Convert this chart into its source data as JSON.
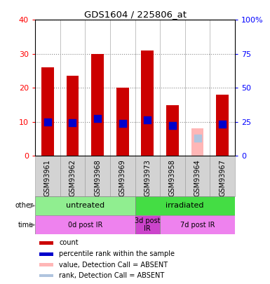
{
  "title": "GDS1604 / 225806_at",
  "samples": [
    "GSM93961",
    "GSM93962",
    "GSM93968",
    "GSM93969",
    "GSM93973",
    "GSM93958",
    "GSM93964",
    "GSM93967"
  ],
  "count_values": [
    26,
    23.5,
    30,
    20,
    31,
    15,
    null,
    18
  ],
  "count_absent_values": [
    null,
    null,
    null,
    null,
    null,
    null,
    8,
    null
  ],
  "rank_values": [
    25,
    24.5,
    27.5,
    24,
    26.5,
    22.5,
    null,
    23.5
  ],
  "rank_absent_values": [
    null,
    null,
    null,
    null,
    null,
    null,
    13,
    null
  ],
  "ylim_left": [
    0,
    40
  ],
  "ylim_right": [
    0,
    100
  ],
  "left_ticks": [
    0,
    10,
    20,
    30,
    40
  ],
  "right_ticks": [
    0,
    25,
    50,
    75,
    100
  ],
  "right_tick_labels": [
    "0",
    "25",
    "50",
    "75",
    "100%"
  ],
  "bar_color_present": "#cc0000",
  "bar_color_absent": "#ffb6b6",
  "rank_color_present": "#0000cc",
  "rank_color_absent": "#b0c4de",
  "group_other": [
    {
      "label": "untreated",
      "start": 0,
      "end": 4,
      "color": "#90ee90"
    },
    {
      "label": "irradiated",
      "start": 4,
      "end": 8,
      "color": "#44dd44"
    }
  ],
  "group_time": [
    {
      "label": "0d post IR",
      "start": 0,
      "end": 4,
      "color": "#ee82ee"
    },
    {
      "label": "3d post\nIR",
      "start": 4,
      "end": 5,
      "color": "#cc44cc"
    },
    {
      "label": "7d post IR",
      "start": 5,
      "end": 8,
      "color": "#ee82ee"
    }
  ],
  "legend_items": [
    {
      "label": "count",
      "color": "#cc0000"
    },
    {
      "label": "percentile rank within the sample",
      "color": "#0000cc"
    },
    {
      "label": "value, Detection Call = ABSENT",
      "color": "#ffb6b6"
    },
    {
      "label": "rank, Detection Call = ABSENT",
      "color": "#b0c4de"
    }
  ],
  "bar_width": 0.5,
  "rank_marker_size": 55,
  "sample_box_color": "#d3d3d3",
  "sample_box_edge": "#aaaaaa",
  "grid_color": "#888888",
  "spine_color": "#000000"
}
